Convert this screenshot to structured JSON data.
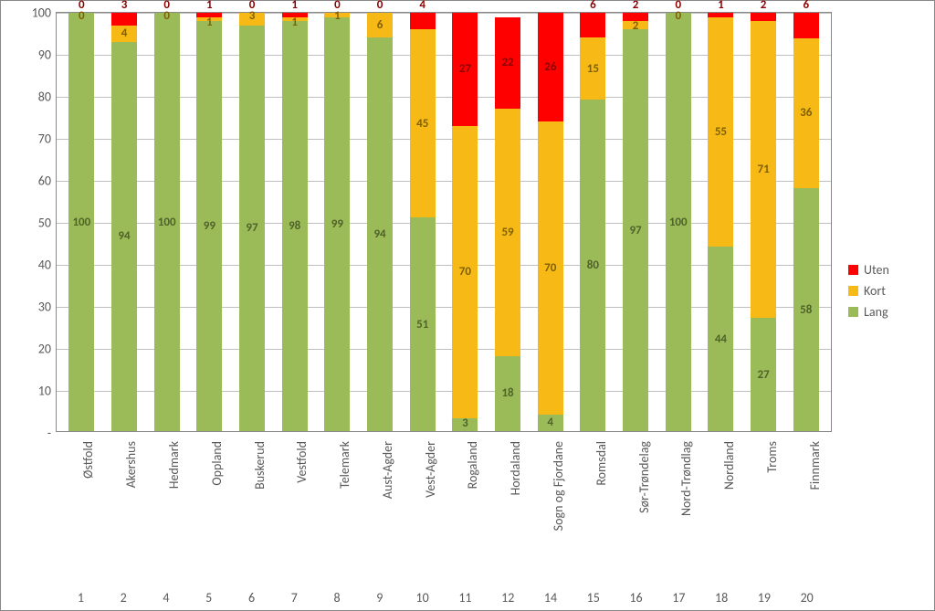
{
  "chart": {
    "type": "stacked-bar",
    "background_color": "#ffffff",
    "grid_color": "#bfbfbf",
    "axis_color": "#888888",
    "label_color": "#595959",
    "label_fontsize": 14,
    "data_label_fontsize": 13,
    "ylim": [
      0,
      100
    ],
    "ytick_step": 10,
    "yticks": [
      "-",
      "10",
      "20",
      "30",
      "40",
      "50",
      "60",
      "70",
      "80",
      "90",
      "100"
    ],
    "series": [
      {
        "key": "lang",
        "label": "Lang",
        "color": "#9bbb59",
        "text_color": "#4f6228"
      },
      {
        "key": "kort",
        "label": "Kort",
        "color": "#f6b915",
        "text_color": "#7f6000"
      },
      {
        "key": "uten",
        "label": "Uten",
        "color": "#ff0000",
        "text_color": "#8b0000"
      }
    ],
    "legend_order": [
      "uten",
      "kort",
      "lang"
    ],
    "categories": [
      {
        "num": "1",
        "name": "Østfold",
        "lang": 100,
        "kort": 0,
        "uten": 0
      },
      {
        "num": "2",
        "name": "Akershus",
        "lang": 94,
        "kort": 4,
        "uten": 3
      },
      {
        "num": "4",
        "name": "Hedmark",
        "lang": 100,
        "kort": 0,
        "uten": 0
      },
      {
        "num": "5",
        "name": "Oppland",
        "lang": 99,
        "kort": 1,
        "uten": 1
      },
      {
        "num": "6",
        "name": "Buskerud",
        "lang": 97,
        "kort": 3,
        "uten": 0
      },
      {
        "num": "7",
        "name": "Vestfold",
        "lang": 98,
        "kort": 1,
        "uten": 1
      },
      {
        "num": "8",
        "name": "Telemark",
        "lang": 99,
        "kort": 1,
        "uten": 0
      },
      {
        "num": "9",
        "name": "Aust-Agder",
        "lang": 94,
        "kort": 6,
        "uten": 0
      },
      {
        "num": "10",
        "name": "Vest-Agder",
        "lang": 51,
        "kort": 45,
        "uten": 4
      },
      {
        "num": "11",
        "name": "Rogaland",
        "lang": 3,
        "kort": 70,
        "uten": 27
      },
      {
        "num": "12",
        "name": "Hordaland",
        "lang": 18,
        "kort": 59,
        "uten": 22
      },
      {
        "num": "14",
        "name": "Sogn og Fjordane",
        "lang": 4,
        "kort": 70,
        "uten": 26
      },
      {
        "num": "15",
        "name": "Romsdal",
        "lang": 80,
        "kort": 15,
        "uten": 6
      },
      {
        "num": "16",
        "name": "Sør-Trøndelag",
        "lang": 97,
        "kort": 2,
        "uten": 2
      },
      {
        "num": "17",
        "name": "Nord-Trøndlag",
        "lang": 100,
        "kort": 0,
        "uten": 0
      },
      {
        "num": "18",
        "name": "Nordland",
        "lang": 44,
        "kort": 55,
        "uten": 1
      },
      {
        "num": "19",
        "name": "Troms",
        "lang": 27,
        "kort": 71,
        "uten": 2
      },
      {
        "num": "20",
        "name": "Finnmark",
        "lang": 58,
        "kort": 36,
        "uten": 6
      }
    ]
  }
}
